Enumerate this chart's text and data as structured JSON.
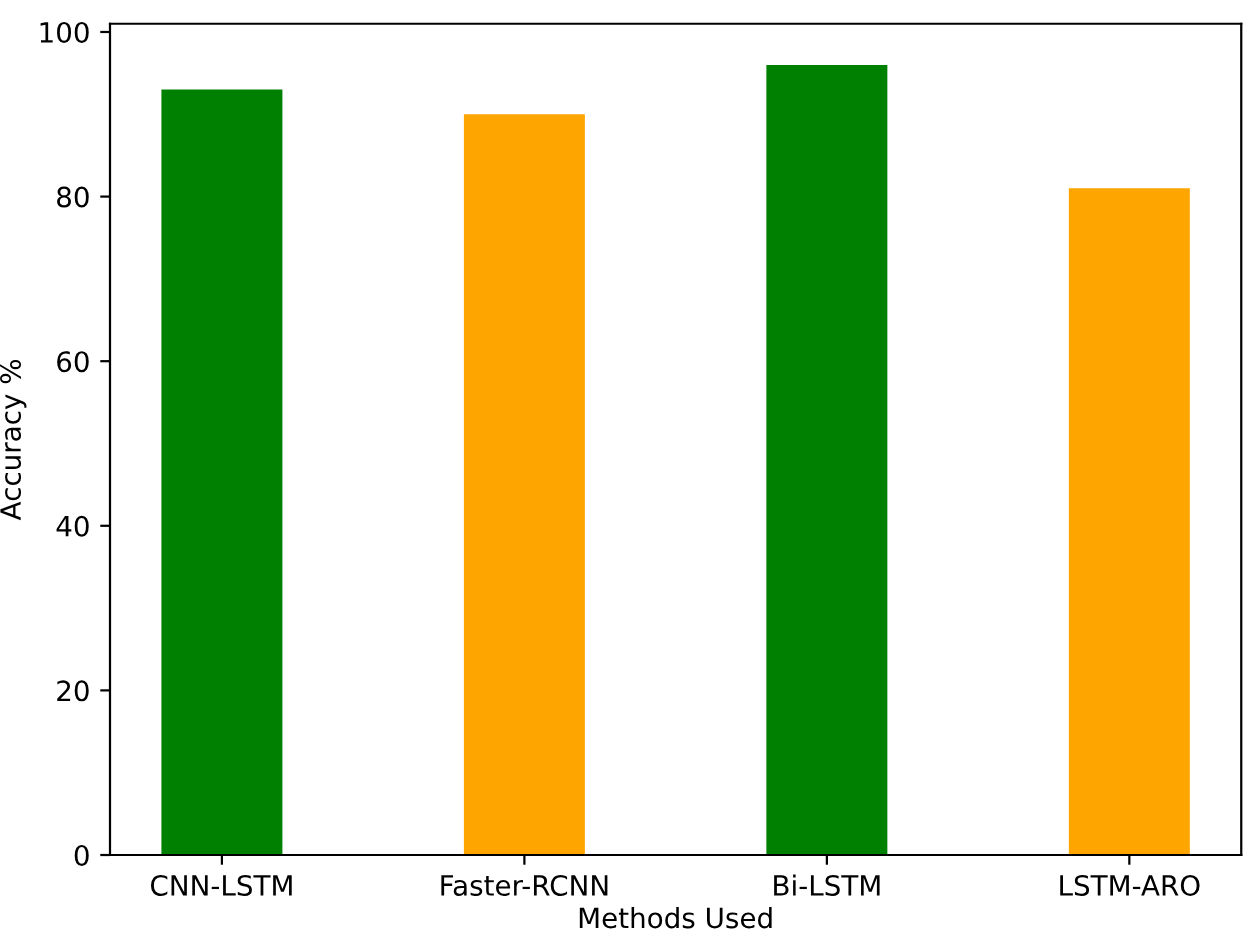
{
  "chart_data": {
    "type": "bar",
    "xlabel": "Methods Used",
    "ylabel": "Accuracy %",
    "categories": [
      "CNN-LSTM",
      "Faster-RCNN",
      "Bi-LSTM",
      "LSTM-ARO"
    ],
    "values": [
      93,
      90,
      96,
      81
    ],
    "colors": [
      "#008000",
      "#ffa500",
      "#008000",
      "#ffa500"
    ],
    "ylim": [
      0,
      101
    ],
    "yticks": [
      0,
      20,
      40,
      60,
      80,
      100
    ],
    "grid": false,
    "legend": false
  }
}
